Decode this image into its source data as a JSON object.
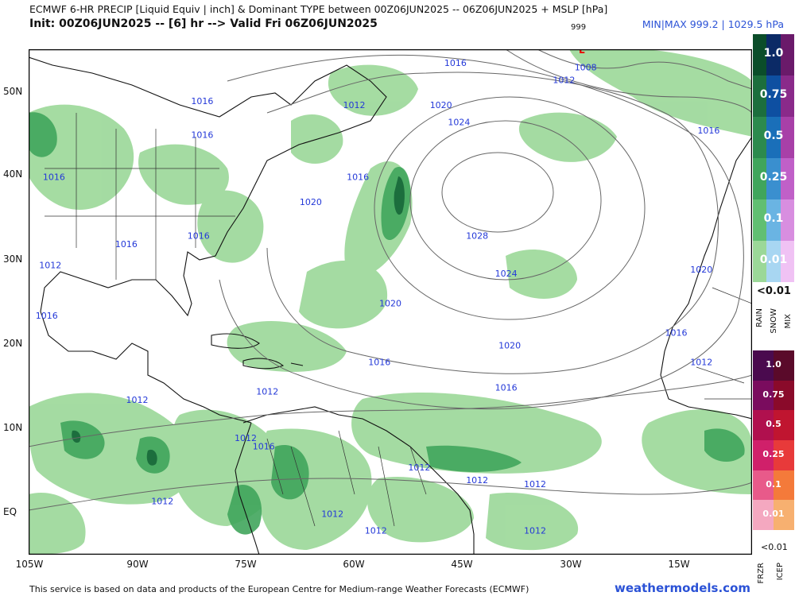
{
  "header": {
    "line1": "ECMWF 6-HR PRECIP [Liquid Equiv | inch] & Dominant TYPE between 00Z06JUN2025 -- 06Z06JUN2025 + MSLP [hPa]",
    "line2": "Init: 00Z06JUN2025 -- [6] hr --> Valid Fri 06Z06JUN2025",
    "minmax": "MIN|MAX 999.2 | 1029.5 hPa",
    "low_value": "999",
    "low_marker": "L"
  },
  "map": {
    "lon_labels": [
      "105W",
      "90W",
      "75W",
      "60W",
      "45W",
      "30W",
      "15W"
    ],
    "lat_labels": [
      "50N",
      "40N",
      "30N",
      "20N",
      "10N",
      "EQ"
    ],
    "isobar_labels": [
      {
        "t": "1016",
        "lon": -81,
        "lat": 48.5
      },
      {
        "t": "1016",
        "lon": -81,
        "lat": 44.5
      },
      {
        "t": "1016",
        "lon": -101.5,
        "lat": 39.5
      },
      {
        "t": "1016",
        "lon": -81.5,
        "lat": 32.5
      },
      {
        "t": "1016",
        "lon": -91.5,
        "lat": 31.5
      },
      {
        "t": "1012",
        "lon": -102,
        "lat": 29
      },
      {
        "t": "1016",
        "lon": -102.5,
        "lat": 23
      },
      {
        "t": "1012",
        "lon": -90,
        "lat": 13
      },
      {
        "t": "1012",
        "lon": -72,
        "lat": 14
      },
      {
        "t": "1012",
        "lon": -75,
        "lat": 8.5
      },
      {
        "t": "1016",
        "lon": -72.5,
        "lat": 7.5
      },
      {
        "t": "1012",
        "lon": -86.5,
        "lat": 1
      },
      {
        "t": "1012",
        "lon": -63,
        "lat": -0.5
      },
      {
        "t": "1012",
        "lon": -57,
        "lat": -2.5
      },
      {
        "t": "1012",
        "lon": -51,
        "lat": 5
      },
      {
        "t": "1012",
        "lon": -43,
        "lat": 3.5
      },
      {
        "t": "1012",
        "lon": -35,
        "lat": 3
      },
      {
        "t": "1012",
        "lon": -35,
        "lat": -2.5
      },
      {
        "t": "1016",
        "lon": -59.5,
        "lat": 39.5
      },
      {
        "t": "1012",
        "lon": -60,
        "lat": 48
      },
      {
        "t": "1016",
        "lon": -46,
        "lat": 53
      },
      {
        "t": "1020",
        "lon": -48,
        "lat": 48
      },
      {
        "t": "1024",
        "lon": -45.5,
        "lat": 46
      },
      {
        "t": "1020",
        "lon": -66,
        "lat": 36.5
      },
      {
        "t": "1028",
        "lon": -43,
        "lat": 32.5
      },
      {
        "t": "1024",
        "lon": -39,
        "lat": 28
      },
      {
        "t": "1020",
        "lon": -55,
        "lat": 24.5
      },
      {
        "t": "1020",
        "lon": -38.5,
        "lat": 19.5
      },
      {
        "t": "1016",
        "lon": -56.5,
        "lat": 17.5
      },
      {
        "t": "1016",
        "lon": -39,
        "lat": 14.5
      },
      {
        "t": "1008",
        "lon": -28,
        "lat": 52.5
      },
      {
        "t": "1012",
        "lon": -31,
        "lat": 51
      },
      {
        "t": "1016",
        "lon": -11,
        "lat": 45
      },
      {
        "t": "1020",
        "lon": -12,
        "lat": 28.5
      },
      {
        "t": "1016",
        "lon": -15.5,
        "lat": 21
      },
      {
        "t": "1012",
        "lon": -12,
        "lat": 17.5
      }
    ]
  },
  "legend": {
    "rain_snow_mix": {
      "levels": [
        "1.0",
        "0.75",
        "0.5",
        "0.25",
        "0.1",
        "0.01"
      ],
      "below": "<0.01",
      "types": [
        "RAIN",
        "SNOW",
        "MIX"
      ],
      "rain_colors": [
        "#0b4d2a",
        "#1c6e3d",
        "#2c8a4d",
        "#40a55c",
        "#61bf72",
        "#9bd898"
      ],
      "snow_colors": [
        "#0b2a66",
        "#0e4fa1",
        "#1a6fb9",
        "#3a8fcf",
        "#6ab4e3",
        "#a8d6f2"
      ],
      "mix_colors": [
        "#6a1a6a",
        "#8a2a8a",
        "#a840a8",
        "#c060c8",
        "#d88ee0",
        "#f0c2f4"
      ]
    },
    "frzr_icep": {
      "levels": [
        "1.0",
        "0.75",
        "0.5",
        "0.25",
        "0.1",
        "0.01"
      ],
      "below": "<0.01",
      "types": [
        "FRZR",
        "ICEP"
      ],
      "frzr_colors": [
        "#4a0a4e",
        "#7a0c5e",
        "#b0104e",
        "#d0206a",
        "#e85a8a",
        "#f4a8c0"
      ],
      "icep_colors": [
        "#5a0a2a",
        "#8a0a2a",
        "#c01530",
        "#e83a3a",
        "#f47a3a",
        "#f7b070"
      ]
    }
  },
  "footer": {
    "credit": "This service is based on data and products of the European Centre for Medium-range Weather Forecasts (ECMWF)",
    "brand": "weathermodels.com"
  }
}
